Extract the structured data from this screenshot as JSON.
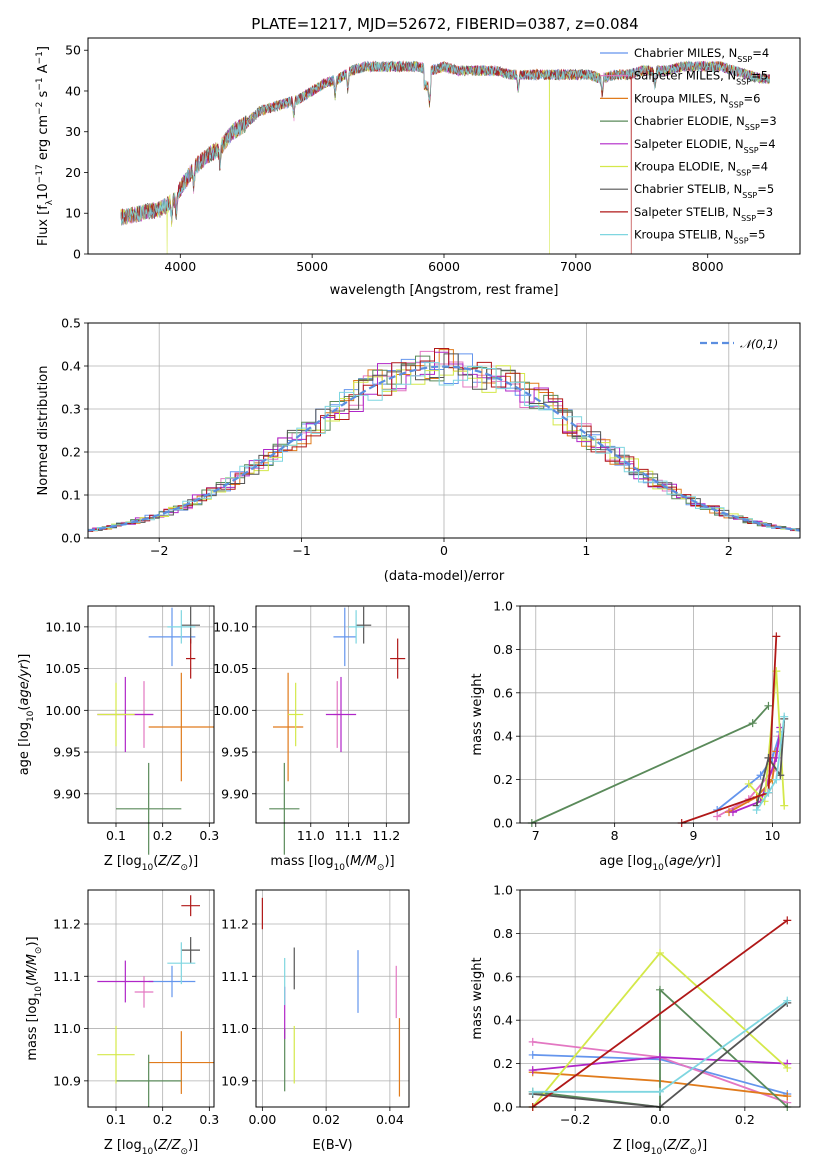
{
  "figure": {
    "title": "PLATE=1217, MJD=52672, FIBERID=0387, z=0.084"
  },
  "models": [
    {
      "name": "Chabrier MILES",
      "nssp": "4",
      "color": "#6495ed"
    },
    {
      "name": "Salpeter MILES",
      "nssp": "5",
      "color": "#e377c2"
    },
    {
      "name": "Kroupa MILES",
      "nssp": "6",
      "color": "#e07b1c"
    },
    {
      "name": "Chabrier ELODIE",
      "nssp": "3",
      "color": "#5a8a5a"
    },
    {
      "name": "Salpeter ELODIE",
      "nssp": "4",
      "color": "#b026c8"
    },
    {
      "name": "Kroupa ELODIE",
      "nssp": "4",
      "color": "#d4e84a"
    },
    {
      "name": "Chabrier STELIB",
      "nssp": "5",
      "color": "#555555"
    },
    {
      "name": "Salpeter STELIB",
      "nssp": "3",
      "color": "#b01818"
    },
    {
      "name": "Kroupa STELIB",
      "nssp": "5",
      "color": "#7fd6e0"
    }
  ],
  "chart_data": [
    {
      "id": "spectrum",
      "type": "line",
      "xlabel": "wavelength [Angstrom, rest frame]",
      "ylabel": "Flux [f_λ 10^-17 erg cm^-2 s^-1 A^-1]",
      "xlim": [
        3300,
        8700
      ],
      "ylim": [
        0,
        53
      ],
      "xticks": [
        4000,
        5000,
        6000,
        7000,
        8000
      ],
      "yticks": [
        0,
        10,
        20,
        30,
        40,
        50
      ],
      "grid": false,
      "legend": "right",
      "legend_entries": [
        "Chabrier MILES, N_SSP=4",
        "Salpeter MILES, N_SSP=5",
        "Kroupa MILES, N_SSP=6",
        "Chabrier ELODIE, N_SSP=3",
        "Salpeter ELODIE, N_SSP=4",
        "Kroupa ELODIE, N_SSP=4",
        "Chabrier STELIB, N_SSP=5",
        "Salpeter STELIB, N_SSP=3",
        "Kroupa STELIB, N_SSP=5"
      ],
      "continuum": [
        [
          3550,
          9
        ],
        [
          3700,
          10
        ],
        [
          3850,
          11
        ],
        [
          3950,
          13
        ],
        [
          4000,
          16
        ],
        [
          4100,
          21
        ],
        [
          4200,
          24
        ],
        [
          4300,
          26
        ],
        [
          4400,
          30
        ],
        [
          4500,
          32
        ],
        [
          4600,
          35
        ],
        [
          4700,
          36
        ],
        [
          4800,
          37
        ],
        [
          4900,
          38
        ],
        [
          5000,
          40
        ],
        [
          5100,
          42
        ],
        [
          5200,
          43
        ],
        [
          5300,
          45
        ],
        [
          5400,
          46
        ],
        [
          5500,
          46
        ],
        [
          5600,
          46
        ],
        [
          5700,
          46
        ],
        [
          5800,
          46
        ],
        [
          5900,
          45
        ],
        [
          6000,
          46
        ],
        [
          6100,
          45
        ],
        [
          6200,
          45
        ],
        [
          6300,
          45
        ],
        [
          6400,
          45
        ],
        [
          6500,
          44
        ],
        [
          6600,
          44
        ],
        [
          6700,
          44
        ],
        [
          6800,
          44
        ],
        [
          6900,
          44
        ],
        [
          7000,
          44
        ],
        [
          7100,
          44
        ],
        [
          7200,
          43
        ],
        [
          7300,
          44
        ],
        [
          7400,
          44
        ],
        [
          7500,
          45
        ],
        [
          7600,
          45
        ],
        [
          7700,
          45
        ],
        [
          7800,
          46
        ],
        [
          7900,
          46
        ],
        [
          8000,
          46
        ],
        [
          8100,
          46
        ],
        [
          8200,
          45
        ],
        [
          8300,
          44
        ],
        [
          8400,
          43
        ],
        [
          8500,
          43
        ]
      ],
      "drops": [
        {
          "model": "Kroupa STELIB",
          "x": 3550
        },
        {
          "model": "Kroupa ELODIE",
          "x": 3900
        },
        {
          "model": "Kroupa ELODIE",
          "x": 6800
        },
        {
          "model": "Salpeter STELIB",
          "x": 7420
        }
      ]
    },
    {
      "id": "residuals",
      "type": "step",
      "xlabel": "(data-model)/error",
      "ylabel": "Normed distribution",
      "xlim": [
        -2.5,
        2.5
      ],
      "ylim": [
        0,
        0.5
      ],
      "xticks": [
        -2,
        -1,
        0,
        1,
        2
      ],
      "yticks": [
        0.0,
        0.1,
        0.2,
        0.3,
        0.4,
        0.5
      ],
      "grid": true,
      "legend": "top-right",
      "reference_curve": {
        "name": "𝒩(0,1)",
        "mean": 0,
        "sigma": 1,
        "color": "#5b8ee0"
      },
      "bin_width": 0.1
    },
    {
      "id": "age-vs-Z",
      "type": "errorbar",
      "xlabel": "Z [log10(Z/Z⊙)]",
      "ylabel": "age [log10(age/yr)]",
      "xlim": [
        0.04,
        0.31
      ],
      "ylim": [
        9.865,
        10.125
      ],
      "xticks": [
        0.1,
        0.2,
        0.3
      ],
      "yticks": [
        9.9,
        9.95,
        10.0,
        10.05,
        10.1
      ],
      "grid": true,
      "points": [
        {
          "model": "Chabrier MILES",
          "x": 0.22,
          "xerr": 0.05,
          "y": 10.088,
          "yerr": 0.035
        },
        {
          "model": "Salpeter MILES",
          "x": 0.16,
          "xerr": 0.02,
          "y": 9.995,
          "yerr": 0.04
        },
        {
          "model": "Kroupa MILES",
          "x": 0.24,
          "xerr": 0.07,
          "y": 9.98,
          "yerr": 0.065
        },
        {
          "model": "Chabrier ELODIE",
          "x": 0.17,
          "xerr": 0.07,
          "y": 9.882,
          "yerr": 0.055
        },
        {
          "model": "Salpeter ELODIE",
          "x": 0.12,
          "xerr": 0.06,
          "y": 9.995,
          "yerr": 0.045
        },
        {
          "model": "Kroupa ELODIE",
          "x": 0.1,
          "xerr": 0.04,
          "y": 9.995,
          "yerr": 0.038
        },
        {
          "model": "Chabrier STELIB",
          "x": 0.26,
          "xerr": 0.02,
          "y": 10.102,
          "yerr": 0.022
        },
        {
          "model": "Salpeter STELIB",
          "x": 0.26,
          "xerr": 0.01,
          "y": 10.062,
          "yerr": 0.024
        },
        {
          "model": "Kroupa STELIB",
          "x": 0.24,
          "xerr": 0.03,
          "y": 10.1,
          "yerr": 0.02
        }
      ]
    },
    {
      "id": "age-vs-mass",
      "type": "errorbar",
      "xlabel": "mass [log10(M/M⊙)]",
      "ylabel": "",
      "xlim": [
        10.855,
        11.26
      ],
      "ylim": [
        9.865,
        10.125
      ],
      "xticks": [
        11.0,
        11.1,
        11.2
      ],
      "yticks": [
        9.9,
        9.95,
        10.0,
        10.05,
        10.1
      ],
      "grid": true,
      "points": [
        {
          "model": "Chabrier MILES",
          "x": 11.09,
          "xerr": 0.03,
          "y": 10.088,
          "yerr": 0.035
        },
        {
          "model": "Salpeter MILES",
          "x": 11.07,
          "xerr": 0.01,
          "y": 9.995,
          "yerr": 0.04
        },
        {
          "model": "Kroupa MILES",
          "x": 10.94,
          "xerr": 0.04,
          "y": 9.98,
          "yerr": 0.065
        },
        {
          "model": "Chabrier ELODIE",
          "x": 10.93,
          "xerr": 0.04,
          "y": 9.882,
          "yerr": 0.055
        },
        {
          "model": "Salpeter ELODIE",
          "x": 11.08,
          "xerr": 0.04,
          "y": 9.995,
          "yerr": 0.045
        },
        {
          "model": "Kroupa ELODIE",
          "x": 10.96,
          "xerr": 0.02,
          "y": 9.995,
          "yerr": 0.038
        },
        {
          "model": "Chabrier STELIB",
          "x": 11.14,
          "xerr": 0.02,
          "y": 10.102,
          "yerr": 0.022
        },
        {
          "model": "Salpeter STELIB",
          "x": 11.23,
          "xerr": 0.02,
          "y": 10.062,
          "yerr": 0.024
        },
        {
          "model": "Kroupa STELIB",
          "x": 11.12,
          "xerr": 0.02,
          "y": 10.1,
          "yerr": 0.02
        }
      ]
    },
    {
      "id": "massweight-vs-age",
      "type": "line",
      "xlabel": "age [log10(age/yr)]",
      "ylabel": "mass weight",
      "xlim": [
        6.8,
        10.35
      ],
      "ylim": [
        0,
        1
      ],
      "xticks": [
        7,
        8,
        9,
        10
      ],
      "yticks": [
        0.0,
        0.2,
        0.4,
        0.6,
        0.8,
        1.0
      ],
      "grid": true,
      "series": [
        {
          "model": "Chabrier MILES",
          "x": [
            9.3,
            9.85,
            10.0,
            10.1
          ],
          "y": [
            0.06,
            0.22,
            0.3,
            0.42
          ]
        },
        {
          "model": "Salpeter MILES",
          "x": [
            9.3,
            9.7,
            10.0,
            10.1
          ],
          "y": [
            0.03,
            0.11,
            0.24,
            0.4
          ]
        },
        {
          "model": "Kroupa MILES",
          "x": [
            9.45,
            9.8,
            10.0,
            10.05
          ],
          "y": [
            0.05,
            0.12,
            0.2,
            0.33
          ]
        },
        {
          "model": "Chabrier ELODIE",
          "x": [
            6.95,
            9.75,
            9.95
          ],
          "y": [
            0.0,
            0.46,
            0.54
          ]
        },
        {
          "model": "Salpeter ELODIE",
          "x": [
            9.5,
            9.85,
            10.05,
            10.1
          ],
          "y": [
            0.05,
            0.1,
            0.3,
            0.44
          ]
        },
        {
          "model": "Kroupa ELODIE",
          "x": [
            9.7,
            9.9,
            10.05,
            10.15
          ],
          "y": [
            0.18,
            0.1,
            0.7,
            0.08
          ]
        },
        {
          "model": "Chabrier STELIB",
          "x": [
            9.8,
            9.95,
            10.1,
            10.15
          ],
          "y": [
            0.08,
            0.3,
            0.22,
            0.48
          ]
        },
        {
          "model": "Salpeter STELIB",
          "x": [
            8.85,
            9.95,
            10.05
          ],
          "y": [
            0.0,
            0.14,
            0.86
          ]
        },
        {
          "model": "Kroupa STELIB",
          "x": [
            9.8,
            9.95,
            10.05,
            10.15
          ],
          "y": [
            0.06,
            0.14,
            0.2,
            0.49
          ]
        }
      ]
    },
    {
      "id": "mass-vs-Z",
      "type": "errorbar",
      "xlabel": "Z [log10(Z/Z⊙)]",
      "ylabel": "mass [log10(M/M⊙)]",
      "xlim": [
        0.04,
        0.31
      ],
      "ylim": [
        10.85,
        11.265
      ],
      "xticks": [
        0.1,
        0.2,
        0.3
      ],
      "yticks": [
        10.9,
        11.0,
        11.1,
        11.2
      ],
      "grid": true,
      "points": [
        {
          "model": "Chabrier MILES",
          "x": 0.22,
          "xerr": 0.05,
          "y": 11.09,
          "yerr": 0.03
        },
        {
          "model": "Salpeter MILES",
          "x": 0.16,
          "xerr": 0.02,
          "y": 11.07,
          "yerr": 0.03
        },
        {
          "model": "Kroupa MILES",
          "x": 0.24,
          "xerr": 0.07,
          "y": 10.935,
          "yerr": 0.06
        },
        {
          "model": "Chabrier ELODIE",
          "x": 0.17,
          "xerr": 0.07,
          "y": 10.9,
          "yerr": 0.05
        },
        {
          "model": "Salpeter ELODIE",
          "x": 0.12,
          "xerr": 0.06,
          "y": 11.09,
          "yerr": 0.04
        },
        {
          "model": "Kroupa ELODIE",
          "x": 0.1,
          "xerr": 0.04,
          "y": 10.95,
          "yerr": 0.055
        },
        {
          "model": "Chabrier STELIB",
          "x": 0.26,
          "xerr": 0.02,
          "y": 11.15,
          "yerr": 0.025
        },
        {
          "model": "Salpeter STELIB",
          "x": 0.26,
          "xerr": 0.02,
          "y": 11.235,
          "yerr": 0.02
        },
        {
          "model": "Kroupa STELIB",
          "x": 0.24,
          "xerr": 0.03,
          "y": 11.125,
          "yerr": 0.04
        }
      ]
    },
    {
      "id": "mass-vs-EBV",
      "type": "errorbar",
      "xlabel": "E(B-V)",
      "ylabel": "",
      "xlim": [
        -0.002,
        0.046
      ],
      "ylim": [
        10.85,
        11.265
      ],
      "xticks": [
        0.0,
        0.02,
        0.04
      ],
      "yticks": [
        10.9,
        11.0,
        11.1,
        11.2
      ],
      "grid": true,
      "points": [
        {
          "model": "Chabrier MILES",
          "x": 0.03,
          "xerr": 0,
          "y": 11.09,
          "yerr": 0.06
        },
        {
          "model": "Salpeter MILES",
          "x": 0.042,
          "xerr": 0,
          "y": 11.07,
          "yerr": 0.05
        },
        {
          "model": "Kroupa MILES",
          "x": 0.043,
          "xerr": 0,
          "y": 10.945,
          "yerr": 0.075
        },
        {
          "model": "Chabrier ELODIE",
          "x": 0.007,
          "xerr": 0,
          "y": 10.94,
          "yerr": 0.06
        },
        {
          "model": "Salpeter ELODIE",
          "x": 0.007,
          "xerr": 0,
          "y": 11.03,
          "yerr": 0.05
        },
        {
          "model": "Kroupa ELODIE",
          "x": 0.01,
          "xerr": 0,
          "y": 10.95,
          "yerr": 0.055
        },
        {
          "model": "Chabrier STELIB",
          "x": 0.01,
          "xerr": 0,
          "y": 11.115,
          "yerr": 0.04
        },
        {
          "model": "Salpeter STELIB",
          "x": 0.0,
          "xerr": 0,
          "y": 11.22,
          "yerr": 0.03
        },
        {
          "model": "Kroupa STELIB",
          "x": 0.007,
          "xerr": 0,
          "y": 11.09,
          "yerr": 0.045
        }
      ]
    },
    {
      "id": "massweight-vs-Z",
      "type": "line",
      "xlabel": "Z [log10(Z/Z⊙)]",
      "ylabel": "mass weight",
      "xlim": [
        -0.33,
        0.33
      ],
      "ylim": [
        0,
        1
      ],
      "xticks": [
        -0.2,
        0.0,
        0.2
      ],
      "yticks": [
        0.0,
        0.2,
        0.4,
        0.6,
        0.8,
        1.0
      ],
      "grid": true,
      "series": [
        {
          "model": "Chabrier MILES",
          "x": [
            -0.3,
            0.0,
            0.3
          ],
          "y": [
            0.24,
            0.22,
            0.06
          ]
        },
        {
          "model": "Salpeter MILES",
          "x": [
            -0.3,
            0.0,
            0.3
          ],
          "y": [
            0.3,
            0.23,
            0.02
          ]
        },
        {
          "model": "Kroupa MILES",
          "x": [
            -0.3,
            0.0,
            0.3
          ],
          "y": [
            0.16,
            0.12,
            0.05
          ]
        },
        {
          "model": "Chabrier ELODIE",
          "x": [
            -0.3,
            0.0,
            0.0,
            0.3
          ],
          "y": [
            0.07,
            0.0,
            0.54,
            0.0
          ]
        },
        {
          "model": "Salpeter ELODIE",
          "x": [
            -0.3,
            0.0,
            0.3
          ],
          "y": [
            0.17,
            0.23,
            0.2
          ]
        },
        {
          "model": "Kroupa ELODIE",
          "x": [
            -0.3,
            0.0,
            0.3
          ],
          "y": [
            0.0,
            0.71,
            0.18
          ]
        },
        {
          "model": "Chabrier STELIB",
          "x": [
            -0.3,
            0.0,
            0.3
          ],
          "y": [
            0.06,
            0.0,
            0.48
          ]
        },
        {
          "model": "Salpeter STELIB",
          "x": [
            -0.3,
            0.3
          ],
          "y": [
            0.0,
            0.86
          ]
        },
        {
          "model": "Kroupa STELIB",
          "x": [
            -0.3,
            0.0,
            0.3
          ],
          "y": [
            0.07,
            0.07,
            0.49
          ]
        }
      ]
    }
  ]
}
